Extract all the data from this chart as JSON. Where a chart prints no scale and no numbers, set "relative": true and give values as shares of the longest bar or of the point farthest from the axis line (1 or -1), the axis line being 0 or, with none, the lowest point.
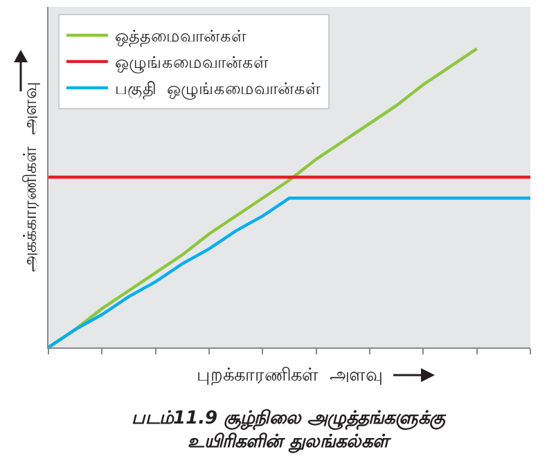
{
  "chart_data": {
    "type": "line",
    "relative": true,
    "xlabel": "புறக்காரணிகள்  அளவு",
    "ylabel": "அகக்காரணிகள்  அளவு",
    "annotations": [
      "படம்11.9 சூழ்நிலை அழுத்தங்களுக்கு\nஉயிரிகளின் துலங்கல்கள்"
    ],
    "categories": [
      null,
      null,
      null,
      null,
      null,
      null,
      null,
      null,
      null,
      null,
      null,
      null,
      null,
      null,
      null,
      null,
      null,
      null,
      null
    ],
    "series": [
      {
        "name": "ஒத்தமைவான்கள்",
        "color": "#8dc63f",
        "values": [
          0,
          0.06,
          0.13,
          0.19,
          0.25,
          0.31,
          0.38,
          0.44,
          0.5,
          0.56,
          0.63,
          0.69,
          0.75,
          0.81,
          0.88,
          0.94,
          1,
          null,
          null
        ]
      },
      {
        "name": "ஒழுங்கமைவான்கள்",
        "color": "#e31e24",
        "values": [
          0.57,
          0.57,
          0.57,
          0.57,
          0.57,
          0.57,
          0.57,
          0.57,
          0.57,
          0.57,
          0.57,
          0.57,
          0.57,
          0.57,
          0.57,
          0.57,
          0.57,
          0.57,
          0.57
        ]
      },
      {
        "name": "பகுதி  ஒழுங்கமைவான்கள்",
        "color": "#00aeef",
        "values": [
          0,
          0.06,
          0.11,
          0.17,
          0.22,
          0.28,
          0.33,
          0.39,
          0.44,
          0.5,
          0.5,
          0.5,
          0.5,
          0.5,
          0.5,
          0.5,
          0.5,
          0.5,
          0.5
        ]
      }
    ],
    "legend": "top left",
    "grid": false,
    "marker": "none",
    "line_style": "solid"
  }
}
